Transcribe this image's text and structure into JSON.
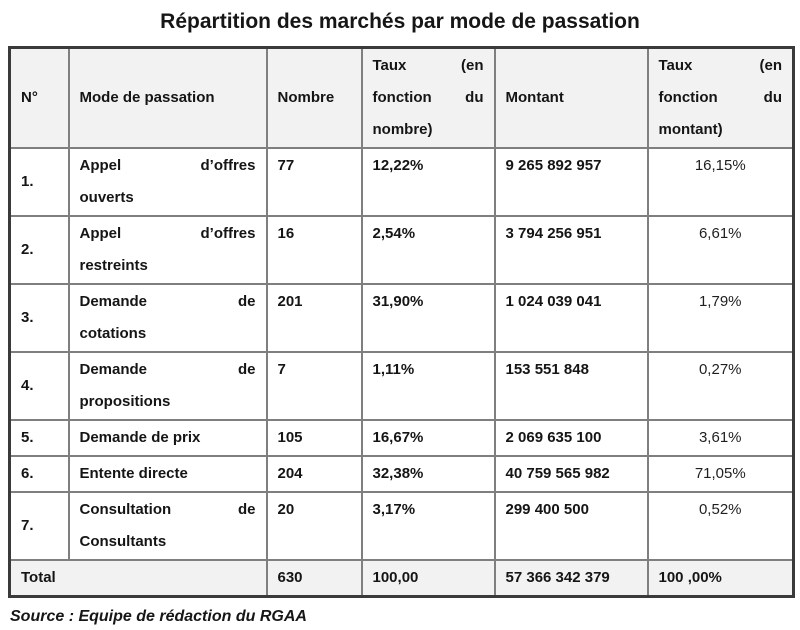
{
  "title": "Répartition des marchés par mode de passation",
  "source_line": "Source : Equipe de rédaction du RGAA",
  "colors": {
    "header_bg": "#f2f2f2",
    "total_bg": "#f2f2f2",
    "inner_border": "#7f7f7f",
    "outer_border": "#3a3a3a",
    "text": "#151515"
  },
  "table": {
    "headers": [
      {
        "id": "numero",
        "lines": [
          "N°"
        ]
      },
      {
        "id": "mode",
        "lines": [
          "Mode de passation"
        ]
      },
      {
        "id": "nombre",
        "lines": [
          "Nombre"
        ]
      },
      {
        "id": "taux-nombre",
        "lines": [
          "Taux (en",
          "fonction du",
          "nombre)"
        ]
      },
      {
        "id": "montant",
        "lines": [
          "Montant"
        ]
      },
      {
        "id": "taux-montant",
        "lines": [
          "Taux (en",
          "fonction du",
          "montant)"
        ]
      }
    ],
    "rows": [
      {
        "num": "1.",
        "mode_lines": [
          "Appel d’offres",
          "ouverts"
        ],
        "nombre": "77",
        "taux_nombre": "12,22%",
        "montant": "9 265 892 957",
        "taux_montant": "16,15%"
      },
      {
        "num": "2.",
        "mode_lines": [
          "Appel d’offres",
          "restreints"
        ],
        "nombre": "16",
        "taux_nombre": "2,54%",
        "montant": "3 794 256 951",
        "taux_montant": "6,61%"
      },
      {
        "num": "3.",
        "mode_lines": [
          "Demande de",
          "cotations"
        ],
        "nombre": "201",
        "taux_nombre": "31,90%",
        "montant": "1 024 039 041",
        "taux_montant": "1,79%"
      },
      {
        "num": "4.",
        "mode_lines": [
          "Demande de",
          "propositions"
        ],
        "nombre": "7",
        "taux_nombre": "1,11%",
        "montant": "153 551 848",
        "taux_montant": "0,27%"
      },
      {
        "num": "5.",
        "mode_lines": [
          "Demande de prix"
        ],
        "nombre": "105",
        "taux_nombre": "16,67%",
        "montant": "2 069 635 100",
        "taux_montant": "3,61%"
      },
      {
        "num": "6.",
        "mode_lines": [
          "Entente directe"
        ],
        "nombre": "204",
        "taux_nombre": "32,38%",
        "montant": "40 759 565 982",
        "taux_montant": "71,05%"
      },
      {
        "num": "7.",
        "mode_lines": [
          "Consultation de",
          "Consultants"
        ],
        "nombre": "20",
        "taux_nombre": "3,17%",
        "montant": "299 400 500",
        "taux_montant": "0,52%"
      }
    ],
    "total": {
      "label": "Total",
      "nombre": "630",
      "taux_nombre": "100,00",
      "montant": "57 366 342 379",
      "taux_montant": "100 ,00%"
    }
  }
}
